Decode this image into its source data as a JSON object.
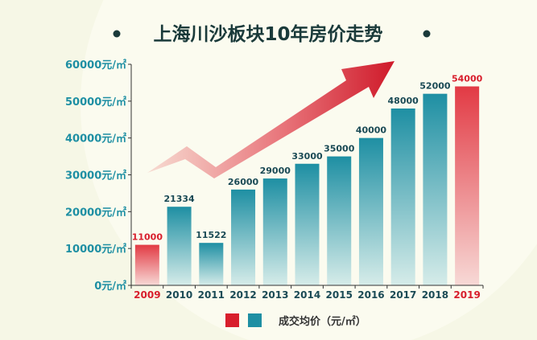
{
  "header": {
    "title": "上海川沙板块10年房价走势"
  },
  "legend": {
    "label": "成交均价（元/㎡）",
    "colors": [
      "#d81e2c",
      "#1e8fa3"
    ]
  },
  "colors": {
    "teal": "#1e8fa3",
    "red": "#d81e2c",
    "background": "#f6f7e6",
    "axis_text": "#1e8fa3"
  },
  "chart_data": {
    "type": "bar",
    "title": "上海川沙板块10年房价走势",
    "xlabel": "",
    "ylabel": "",
    "ylim": [
      0,
      60000
    ],
    "y_ticks": [
      0,
      10000,
      20000,
      30000,
      40000,
      50000,
      60000
    ],
    "y_tick_labels": [
      "0元/㎡",
      "10000元/㎡",
      "20000元/㎡",
      "30000元/㎡",
      "40000元/㎡",
      "50000元/㎡",
      "60000元/㎡"
    ],
    "categories": [
      "2009",
      "2010",
      "2011",
      "2012",
      "2013",
      "2014",
      "2015",
      "2016",
      "2017",
      "2018",
      "2019"
    ],
    "values": [
      11000,
      21334,
      11522,
      26000,
      29000,
      33000,
      35000,
      40000,
      48000,
      52000,
      54000
    ],
    "value_labels": [
      "11000",
      "21334",
      "11522",
      "26000",
      "29000",
      "33000",
      "35000",
      "40000",
      "48000",
      "52000",
      "54000"
    ],
    "bar_colors": [
      "red",
      "teal",
      "teal",
      "teal",
      "teal",
      "teal",
      "teal",
      "teal",
      "teal",
      "teal",
      "red"
    ],
    "series": [
      {
        "name": "成交均价（元/㎡）"
      }
    ],
    "legend_position": "bottom",
    "grid": false
  }
}
